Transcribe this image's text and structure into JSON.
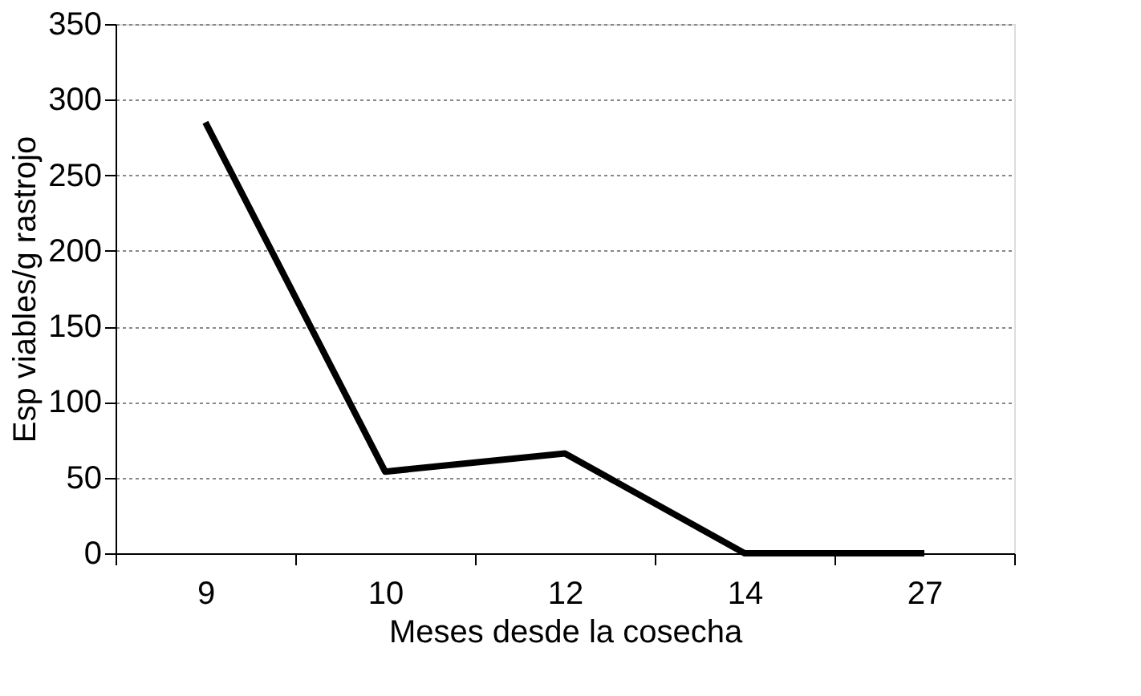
{
  "chart_data": {
    "type": "line",
    "xlabel": "Meses desde la cosecha",
    "ylabel": "Esp viables/g  rastrojo",
    "categories": [
      "9",
      "10",
      "12",
      "14",
      "27"
    ],
    "series": [
      {
        "color": "#000000",
        "values": [
          285,
          54,
          66,
          0,
          0
        ]
      }
    ],
    "ylim": [
      0,
      350
    ],
    "yticks": [
      0,
      50,
      100,
      150,
      200,
      250,
      300,
      350
    ],
    "grid": "y",
    "marker": "none",
    "line_style": "solid"
  }
}
